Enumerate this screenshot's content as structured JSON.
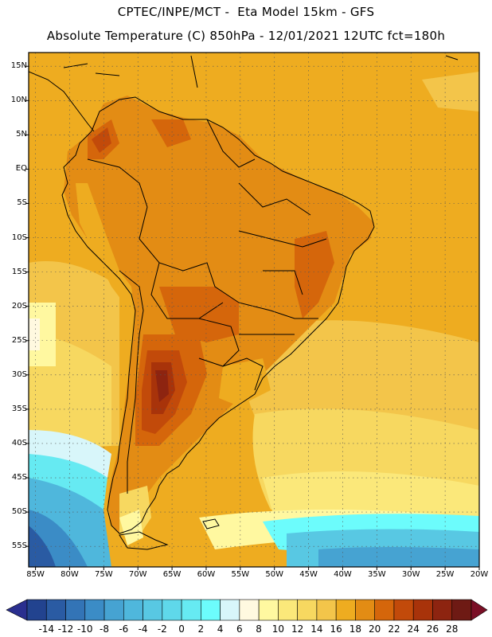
{
  "header": {
    "line1": "CPTEC/INPE/MCT -  Eta Model 15km - GFS",
    "line2": "Absolute Temperature (C) 850hPa - 12/01/2021 12UTC fct=180h"
  },
  "map": {
    "region": "South America",
    "lon_range": [
      -86,
      -20
    ],
    "lat_range": [
      17,
      -58
    ],
    "lat_ticks": [
      {
        "value": 15,
        "label": "15N"
      },
      {
        "value": 10,
        "label": "10N"
      },
      {
        "value": 5,
        "label": "5N"
      },
      {
        "value": 0,
        "label": "EQ"
      },
      {
        "value": -5,
        "label": "5S"
      },
      {
        "value": -10,
        "label": "10S"
      },
      {
        "value": -15,
        "label": "15S"
      },
      {
        "value": -20,
        "label": "20S"
      },
      {
        "value": -25,
        "label": "25S"
      },
      {
        "value": -30,
        "label": "30S"
      },
      {
        "value": -35,
        "label": "35S"
      },
      {
        "value": -40,
        "label": "40S"
      },
      {
        "value": -45,
        "label": "45S"
      },
      {
        "value": -50,
        "label": "50S"
      },
      {
        "value": -55,
        "label": "55S"
      }
    ],
    "lon_ticks": [
      {
        "value": -85,
        "label": "85W"
      },
      {
        "value": -80,
        "label": "80W"
      },
      {
        "value": -75,
        "label": "75W"
      },
      {
        "value": -70,
        "label": "70W"
      },
      {
        "value": -65,
        "label": "65W"
      },
      {
        "value": -60,
        "label": "60W"
      },
      {
        "value": -55,
        "label": "55W"
      },
      {
        "value": -50,
        "label": "50W"
      },
      {
        "value": -45,
        "label": "45W"
      },
      {
        "value": -40,
        "label": "40W"
      },
      {
        "value": -35,
        "label": "35W"
      },
      {
        "value": -30,
        "label": "30W"
      },
      {
        "value": -25,
        "label": "25W"
      },
      {
        "value": -20,
        "label": "20W"
      }
    ]
  },
  "colorbar": {
    "levels": [
      "-14",
      "-12",
      "-10",
      "-8",
      "-6",
      "-4",
      "-2",
      "0",
      "2",
      "4",
      "6",
      "8",
      "10",
      "12",
      "14",
      "16",
      "18",
      "20",
      "22",
      "24",
      "26",
      "28"
    ],
    "low_arrow_color": "#2a2f8f",
    "high_arrow_color": "#7a0f26",
    "colors": [
      "#22438f",
      "#2a5ba3",
      "#3374b6",
      "#3b8cc6",
      "#46a3d2",
      "#4fb7dc",
      "#58c8e3",
      "#5fd8ea",
      "#66eaf2",
      "#6cfcfc",
      "#d8f6fa",
      "#fff9e0",
      "#fff8a0",
      "#fbe87a",
      "#f7d860",
      "#f3c54a",
      "#eeac20",
      "#e38c14",
      "#d5660b",
      "#c24a0a",
      "#a8330a",
      "#8d2410",
      "#6e1a14"
    ]
  }
}
